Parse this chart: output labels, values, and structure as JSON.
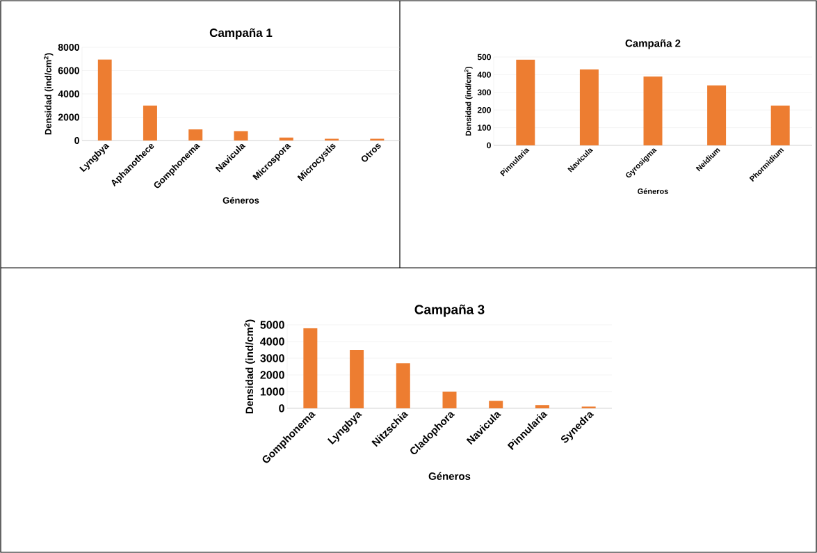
{
  "chart_data": [
    {
      "type": "bar",
      "title": "Campaña 1",
      "xlabel": "Géneros",
      "ylabel": "Densidad (ind/cm$^{2}$)",
      "categories": [
        "Lyngbya",
        "Aphanothece",
        "Gomphonema",
        "Navicula",
        "Microspora",
        "Microcystis",
        "Otros"
      ],
      "values": [
        6950,
        3000,
        950,
        800,
        250,
        150,
        150
      ],
      "color": "#ed7d31",
      "ylim": [
        0,
        8000
      ],
      "yticks": [
        0,
        2000,
        4000,
        6000,
        8000
      ],
      "grid": "y"
    },
    {
      "type": "bar",
      "title": "Campaña 2",
      "xlabel": "Géneros",
      "ylabel": "Densidad (ind/cm$^{2}$)",
      "categories": [
        "Pinnularia",
        "Navicula",
        "Gyrosigma",
        "Neidium",
        "Phormidium"
      ],
      "values": [
        485,
        430,
        390,
        340,
        225
      ],
      "color": "#ed7d31",
      "ylim": [
        0,
        500
      ],
      "yticks": [
        0,
        100,
        200,
        300,
        400,
        500
      ],
      "grid": "y"
    },
    {
      "type": "bar",
      "title": "Campaña 3",
      "xlabel": "Géneros",
      "ylabel": "Densidad (ind/cm$^{2}$)",
      "categories": [
        "Gomphonema",
        "Lyngbya",
        "Nitzschia",
        "Cladophora",
        "Navicula",
        "Pinnularia",
        "Synedra"
      ],
      "values": [
        4800,
        3500,
        2700,
        1000,
        450,
        200,
        100
      ],
      "color": "#ed7d31",
      "ylim": [
        0,
        5000
      ],
      "yticks": [
        0,
        1000,
        2000,
        3000,
        4000,
        5000
      ],
      "grid": "y"
    }
  ]
}
